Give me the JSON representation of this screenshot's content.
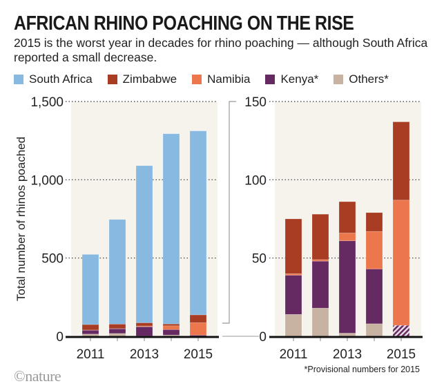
{
  "title": "AFRICAN RHINO POACHING ON THE RISE",
  "subtitle": "2015 is the worst year in decades for rhino poaching — although South Africa reported a small decrease.",
  "footnote": "*Provisional numbers for 2015",
  "logo": "©nature",
  "colors": {
    "South Africa": "#88b9e0",
    "Zimbabwe": "#a83d23",
    "Namibia": "#ec774d",
    "Kenya*": "#662a62",
    "Others*": "#c8b3a3",
    "plot_bg": "#f5f3ec"
  },
  "chart_data": [
    {
      "type": "bar",
      "stacked": true,
      "categories": [
        "2011",
        "2012",
        "2013",
        "2014",
        "2015"
      ],
      "xtick_labels": [
        "2011",
        "2013",
        "2015"
      ],
      "ylabel": "Total number of rhinos poached",
      "ylim": [
        0,
        1500
      ],
      "yticks": [
        0,
        500,
        1000,
        1500
      ],
      "ytick_labels": [
        "0",
        "500",
        "1,000",
        "1,500"
      ],
      "grid": "dotted horizontal",
      "legend": "top",
      "series": [
        {
          "name": "Others*",
          "values": [
            14,
            18,
            2,
            8,
            0
          ]
        },
        {
          "name": "Kenya*",
          "values": [
            25,
            30,
            59,
            35,
            7
          ]
        },
        {
          "name": "Namibia",
          "values": [
            1,
            1,
            5,
            24,
            80
          ]
        },
        {
          "name": "Zimbabwe",
          "values": [
            35,
            29,
            20,
            12,
            50
          ]
        },
        {
          "name": "South Africa",
          "values": [
            448,
            668,
            1004,
            1215,
            1175
          ]
        }
      ]
    },
    {
      "type": "bar",
      "stacked": true,
      "categories": [
        "2011",
        "2012",
        "2013",
        "2014",
        "2015"
      ],
      "xtick_labels": [
        "2011",
        "2013",
        "2015"
      ],
      "ylim": [
        0,
        150
      ],
      "yticks": [
        0,
        50,
        100,
        150
      ],
      "ytick_labels": [
        "0",
        "50",
        "100",
        "150"
      ],
      "grid": "dotted horizontal",
      "note": "2015 Kenya/Others shown hatched (provisional)",
      "series": [
        {
          "name": "Others*",
          "values": [
            14,
            18,
            2,
            8,
            0
          ]
        },
        {
          "name": "Kenya*",
          "values": [
            25,
            30,
            59,
            35,
            7
          ]
        },
        {
          "name": "Namibia",
          "values": [
            1,
            1,
            5,
            24,
            80
          ]
        },
        {
          "name": "Zimbabwe",
          "values": [
            35,
            29,
            20,
            12,
            50
          ]
        }
      ]
    }
  ],
  "legend": [
    "South Africa",
    "Zimbabwe",
    "Namibia",
    "Kenya*",
    "Others*"
  ]
}
